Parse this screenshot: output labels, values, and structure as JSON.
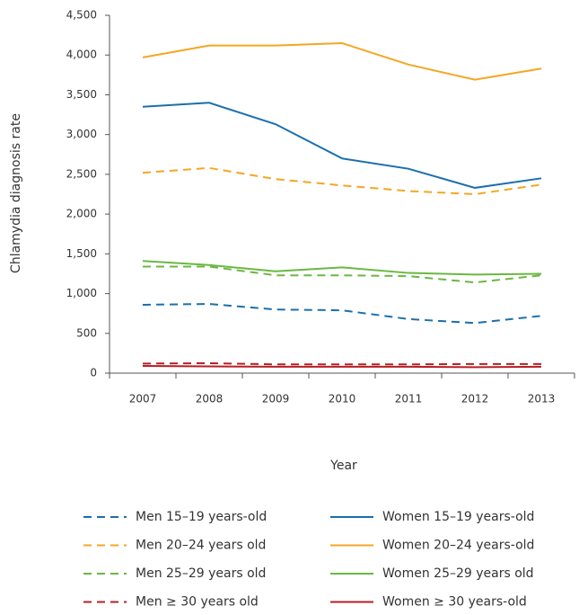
{
  "chart_data": {
    "type": "line",
    "y_label": "Chlamydia diagnosis rate",
    "x_label": "Year",
    "categories": [
      "2007",
      "2008",
      "2009",
      "2010",
      "2011",
      "2012",
      "2013"
    ],
    "ylim": [
      0,
      4500
    ],
    "yticks": [
      0,
      500,
      {
        "value": 1000,
        "label": "1,000"
      },
      {
        "value": 1500,
        "label": "1,500"
      },
      {
        "value": 2000,
        "label": "2,000"
      },
      {
        "value": 2500,
        "label": "2,500"
      },
      {
        "value": 3000,
        "label": "3,000"
      },
      {
        "value": 3500,
        "label": "3,500"
      },
      {
        "value": 4000,
        "label": "4,000"
      },
      {
        "value": 4500,
        "label": "4,500"
      }
    ],
    "grid": false,
    "series": [
      {
        "name": "Men 15–19 years-old",
        "color": "#1b6fad",
        "dashed": true,
        "values": [
          860,
          870,
          800,
          790,
          680,
          630,
          720
        ]
      },
      {
        "name": "Women 15–19 years-old",
        "color": "#1b6fad",
        "dashed": false,
        "values": [
          3350,
          3400,
          3130,
          2700,
          2570,
          2330,
          2450
        ]
      },
      {
        "name": "Men 20–24 years old",
        "color": "#f5a623",
        "dashed": true,
        "values": [
          2520,
          2580,
          2440,
          2360,
          2290,
          2250,
          2370
        ]
      },
      {
        "name": "Women 20–24 years-old",
        "color": "#f5a623",
        "dashed": false,
        "values": [
          3970,
          4120,
          4120,
          4150,
          3880,
          3690,
          3830
        ]
      },
      {
        "name": "Men 25–29 years old",
        "color": "#6ab842",
        "dashed": true,
        "values": [
          1340,
          1340,
          1230,
          1230,
          1220,
          1140,
          1230
        ]
      },
      {
        "name": "Women 25–29 years old",
        "color": "#6ab842",
        "dashed": false,
        "values": [
          1410,
          1360,
          1280,
          1330,
          1260,
          1240,
          1250
        ]
      },
      {
        "name": "Men ≥ 30 years old",
        "color": "#b52025",
        "dashed": true,
        "values": [
          120,
          125,
          110,
          110,
          110,
          115,
          115
        ]
      },
      {
        "name": "Women ≥ 30 years-old",
        "color": "#b52025",
        "dashed": false,
        "values": [
          90,
          85,
          80,
          80,
          80,
          75,
          80
        ]
      }
    ]
  }
}
